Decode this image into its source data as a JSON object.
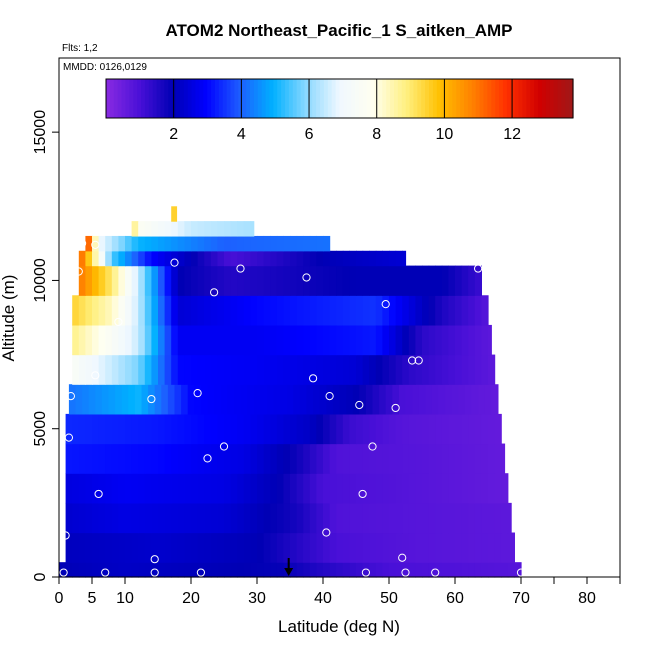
{
  "chart_data": {
    "type": "heatmap",
    "title": "ATOM2 Northeast_Pacific_1 S_aitken_AMP",
    "subtitle_flights": "Flts: 1,2",
    "subtitle_dates": "MMDD: 0126,0129",
    "xlabel": "Latitude (deg N)",
    "ylabel": "Altitude (m)",
    "xlim": [
      0,
      85
    ],
    "ylim": [
      0,
      17500
    ],
    "x_ticks": [
      0,
      5,
      10,
      20,
      30,
      40,
      50,
      60,
      70,
      80
    ],
    "x_minor_ticks": [
      75,
      85
    ],
    "y_ticks": [
      0,
      5000,
      10000,
      15000
    ],
    "colorbar": {
      "min": 0,
      "max": 13.8,
      "ticks": [
        2,
        4,
        6,
        8,
        10,
        12
      ],
      "colors": [
        "#8a2be2",
        "#4a10d8",
        "#0000b4",
        "#0000ff",
        "#1e5cff",
        "#00b0ff",
        "#8ad8ff",
        "#f0f8ff",
        "#fffff0",
        "#fff080",
        "#ffc000",
        "#ff8000",
        "#ff3000",
        "#d00000",
        "#a01818"
      ]
    },
    "profile_bands": [
      {
        "alt": [
          0,
          500
        ],
        "lat": [
          0,
          70
        ],
        "values": [
          [
            0,
            2.0
          ],
          [
            10,
            2.2
          ],
          [
            25,
            2.0
          ],
          [
            34,
            1.9
          ],
          [
            40,
            1.5
          ],
          [
            50,
            1.0
          ],
          [
            60,
            0.9
          ],
          [
            70,
            0.8
          ]
        ]
      },
      {
        "alt": [
          500,
          1500
        ],
        "lat": [
          1,
          69
        ],
        "values": [
          [
            0,
            2.1
          ],
          [
            15,
            2.3
          ],
          [
            30,
            2.0
          ],
          [
            36,
            1.5
          ],
          [
            42,
            1.0
          ],
          [
            55,
            0.8
          ],
          [
            69,
            0.7
          ]
        ]
      },
      {
        "alt": [
          1500,
          2500
        ],
        "lat": [
          1,
          68.5
        ],
        "values": [
          [
            0,
            2.3
          ],
          [
            10,
            2.6
          ],
          [
            25,
            2.4
          ],
          [
            36,
            1.7
          ],
          [
            42,
            0.9
          ],
          [
            55,
            0.8
          ],
          [
            68.5,
            0.7
          ]
        ]
      },
      {
        "alt": [
          2500,
          3500
        ],
        "lat": [
          1,
          68
        ],
        "values": [
          [
            0,
            2.5
          ],
          [
            10,
            2.8
          ],
          [
            25,
            2.6
          ],
          [
            33,
            2.0
          ],
          [
            40,
            1.0
          ],
          [
            55,
            0.8
          ],
          [
            68,
            0.6
          ]
        ]
      },
      {
        "alt": [
          3500,
          4500
        ],
        "lat": [
          1,
          67.5
        ],
        "values": [
          [
            0,
            3.2
          ],
          [
            15,
            3.0
          ],
          [
            28,
            2.6
          ],
          [
            36,
            1.8
          ],
          [
            42,
            0.9
          ],
          [
            55,
            0.8
          ],
          [
            67.5,
            0.6
          ]
        ]
      },
      {
        "alt": [
          4500,
          5500
        ],
        "lat": [
          1,
          67
        ],
        "values": [
          [
            0,
            3.4
          ],
          [
            15,
            3.2
          ],
          [
            28,
            2.8
          ],
          [
            38,
            2.2
          ],
          [
            44,
            1.2
          ],
          [
            52,
            0.8
          ],
          [
            67,
            0.6
          ]
        ]
      },
      {
        "alt": [
          5500,
          6500
        ],
        "lat": [
          1.5,
          66.5
        ],
        "values": [
          [
            1.5,
            4.2
          ],
          [
            12,
            5.0
          ],
          [
            20,
            3.0
          ],
          [
            35,
            2.6
          ],
          [
            45,
            2.0
          ],
          [
            52,
            1.0
          ],
          [
            66.5,
            0.6
          ]
        ]
      },
      {
        "alt": [
          6500,
          7500
        ],
        "lat": [
          2,
          66
        ],
        "values": [
          [
            2,
            7.5
          ],
          [
            8,
            6.5
          ],
          [
            12,
            5.8
          ],
          [
            18,
            3.0
          ],
          [
            30,
            2.8
          ],
          [
            45,
            2.4
          ],
          [
            53,
            1.4
          ],
          [
            66,
            0.7
          ]
        ]
      },
      {
        "alt": [
          7500,
          8500
        ],
        "lat": [
          2,
          65.5
        ],
        "values": [
          [
            2,
            8.8
          ],
          [
            8,
            7.5
          ],
          [
            12,
            6.5
          ],
          [
            18,
            2.8
          ],
          [
            30,
            2.8
          ],
          [
            48,
            3.2
          ],
          [
            55,
            1.4
          ],
          [
            65.5,
            0.7
          ]
        ]
      },
      {
        "alt": [
          8500,
          9500
        ],
        "lat": [
          2,
          65
        ],
        "values": [
          [
            2,
            9.5
          ],
          [
            8,
            8.3
          ],
          [
            12,
            6.5
          ],
          [
            18,
            2.4
          ],
          [
            30,
            3.0
          ],
          [
            48,
            3.5
          ],
          [
            58,
            1.6
          ],
          [
            65,
            0.8
          ]
        ]
      },
      {
        "alt": [
          9500,
          10500
        ],
        "lat": [
          3,
          64
        ],
        "values": [
          [
            3,
            11.0
          ],
          [
            8,
            9.0
          ],
          [
            12,
            6.5
          ],
          [
            18,
            2.0
          ],
          [
            26,
            1.5
          ],
          [
            45,
            2.0
          ],
          [
            58,
            2.0
          ],
          [
            64,
            1.2
          ]
        ]
      },
      {
        "alt": [
          10500,
          11000
        ],
        "lat": [
          3,
          52.5
        ],
        "values": [
          [
            3,
            11.5
          ],
          [
            8,
            5.5
          ],
          [
            14,
            3.0
          ],
          [
            26,
            1.0
          ],
          [
            40,
            2.0
          ],
          [
            52.5,
            2.4
          ]
        ]
      },
      {
        "alt": [
          11000,
          11500
        ],
        "lat": [
          4,
          41
        ],
        "values": [
          [
            4,
            12.5
          ],
          [
            6,
            7.0
          ],
          [
            12,
            5.0
          ],
          [
            25,
            4.0
          ],
          [
            41,
            4.2
          ]
        ]
      },
      {
        "alt": [
          11500,
          12000
        ],
        "lat": [
          11,
          29.5
        ],
        "values": [
          [
            11,
            9.5
          ],
          [
            12,
            7.7
          ],
          [
            20,
            6.5
          ],
          [
            29.5,
            6.2
          ]
        ]
      },
      {
        "alt": [
          12000,
          12500
        ],
        "lat": [
          17,
          17.8
        ],
        "values": [
          [
            17,
            9.5
          ],
          [
            17.8,
            9.5
          ]
        ]
      }
    ],
    "observations": [
      [
        0.7,
        150
      ],
      [
        1,
        1400
      ],
      [
        1.5,
        4700
      ],
      [
        1.8,
        6100
      ],
      [
        3,
        10300
      ],
      [
        3.5,
        11250
      ],
      [
        5.5,
        6800
      ],
      [
        5.5,
        11200
      ],
      [
        6,
        2800
      ],
      [
        7,
        150
      ],
      [
        9,
        8600
      ],
      [
        14,
        6000
      ],
      [
        14.5,
        600
      ],
      [
        14.5,
        150
      ],
      [
        17.5,
        10600
      ],
      [
        21,
        6200
      ],
      [
        21.5,
        150
      ],
      [
        22.5,
        4000
      ],
      [
        23.5,
        9600
      ],
      [
        25,
        4400
      ],
      [
        27.5,
        10400
      ],
      [
        37.5,
        10100
      ],
      [
        38.5,
        6700
      ],
      [
        40.5,
        1500
      ],
      [
        41,
        6100
      ],
      [
        45.5,
        5800
      ],
      [
        46,
        2800
      ],
      [
        46.5,
        150
      ],
      [
        47.5,
        4400
      ],
      [
        49.5,
        9200
      ],
      [
        51,
        5700
      ],
      [
        52,
        650
      ],
      [
        52.5,
        150
      ],
      [
        53.5,
        7300
      ],
      [
        54.5,
        7300
      ],
      [
        57,
        150
      ],
      [
        63.5,
        10400
      ],
      [
        70,
        150
      ]
    ],
    "marker": {
      "lat": 34.8,
      "label": "down-arrow"
    }
  }
}
